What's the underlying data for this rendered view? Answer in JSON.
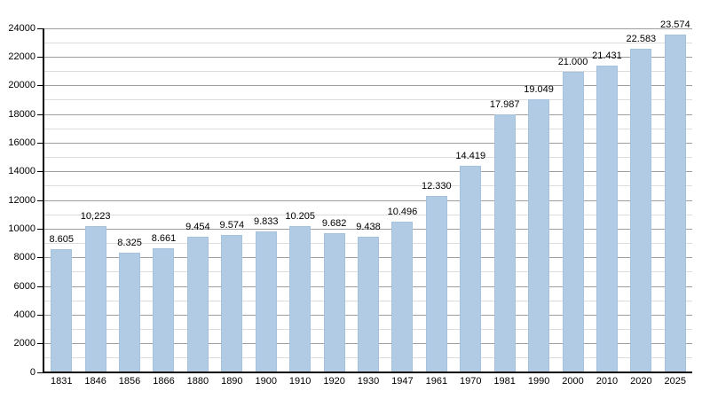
{
  "chart": {
    "title": "",
    "colors": {
      "bar_fill": "#b1cbe5",
      "bar_border": "#a5c2de",
      "grid_major": "#9e9e9e",
      "grid_minor": "#dcdcdc",
      "axis": "#000000",
      "text": "#000000",
      "background": "#ffffff"
    }
  },
  "chart_data": {
    "type": "bar",
    "title": "",
    "xlabel": "",
    "ylabel": "",
    "categories": [
      "1831",
      "1846",
      "1856",
      "1866",
      "1880",
      "1890",
      "1900",
      "1910",
      "1920",
      "1930",
      "1947",
      "1961",
      "1970",
      "1981",
      "1990",
      "2000",
      "2010",
      "2020",
      "2025"
    ],
    "values": [
      8605,
      10223,
      8325,
      8661,
      9454,
      9574,
      9833,
      10205,
      9682,
      9438,
      10496,
      12330,
      14419,
      17987,
      19049,
      21000,
      21431,
      22583,
      23574
    ],
    "bar_labels": [
      "8.605",
      "10,223",
      "8.325",
      "8.661",
      "9.454",
      "9.574",
      "9.833",
      "10.205",
      "9.682",
      "9.438",
      "10.496",
      "12.330",
      "14.419",
      "17.987",
      "19.049",
      "21.000",
      "21.431",
      "22.583",
      "23.574"
    ],
    "ylim": [
      0,
      24000
    ],
    "y_major_step": 2000,
    "y_minor_step": 1000,
    "y_tick_labels": [
      "0",
      "2000",
      "4000",
      "6000",
      "8000",
      "10000",
      "12000",
      "14000",
      "16000",
      "18000",
      "20000",
      "22000",
      "24000"
    ],
    "grid": "horizontal",
    "legend": "none"
  }
}
